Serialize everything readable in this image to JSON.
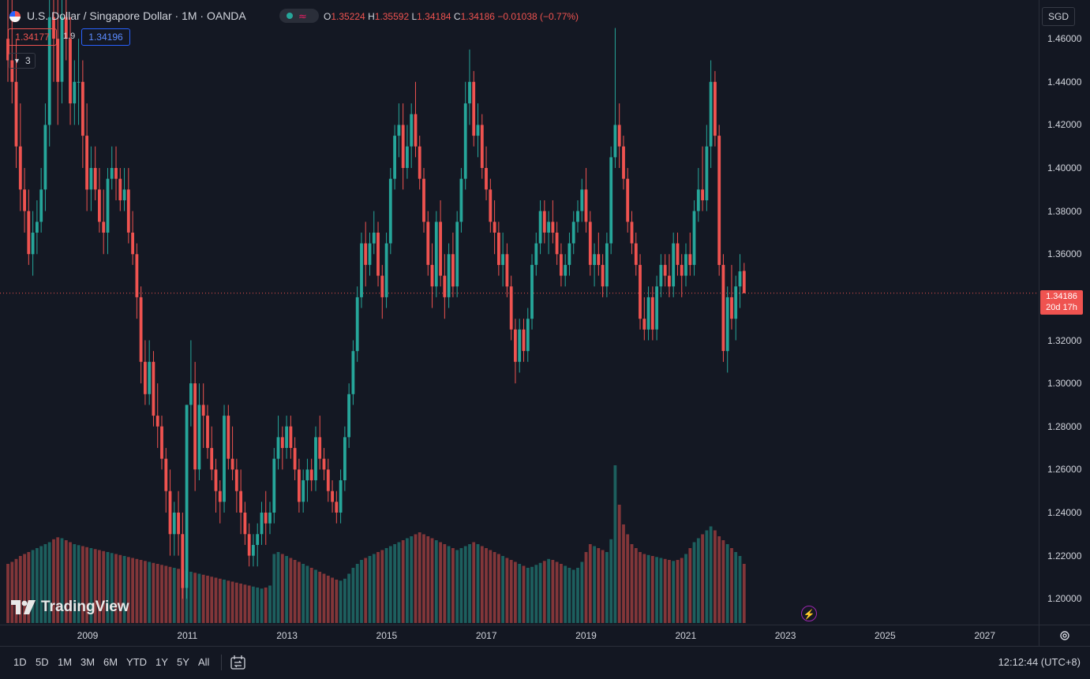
{
  "header": {
    "symbol_title": "U.S. Dollar / Singapore Dollar · 1M · OANDA",
    "status_icons": [
      "dot-icon",
      "waves-icon"
    ],
    "ohlc": {
      "o_label": "O",
      "o_value": "1.35224",
      "h_label": "H",
      "h_value": "1.35592",
      "l_label": "L",
      "l_value": "1.34184",
      "c_label": "C",
      "c_value": "1.34186",
      "change": "−0.01038 (−0.77%)"
    },
    "bid": "1.34177",
    "spread": "1.9",
    "ask": "1.34196",
    "indicators_count": "3"
  },
  "price_axis": {
    "currency": "SGD",
    "ticks": [
      "1.46000",
      "1.44000",
      "1.42000",
      "1.40000",
      "1.38000",
      "1.36000",
      "1.34000",
      "1.32000",
      "1.30000",
      "1.28000",
      "1.26000",
      "1.24000",
      "1.22000",
      "1.20000"
    ],
    "tick_values": [
      1.46,
      1.44,
      1.42,
      1.4,
      1.38,
      1.36,
      1.34,
      1.32,
      1.3,
      1.28,
      1.26,
      1.24,
      1.22,
      1.2
    ],
    "last_price": "1.34186",
    "countdown": "20d 17h"
  },
  "time_axis": {
    "years": [
      "2009",
      "2011",
      "2013",
      "2015",
      "2017",
      "2019",
      "2021",
      "2023",
      "2025",
      "2027"
    ]
  },
  "bottom_toolbar": {
    "ranges": [
      "1D",
      "5D",
      "1M",
      "3M",
      "6M",
      "YTD",
      "1Y",
      "5Y",
      "All"
    ],
    "clock": "12:12:44 (UTC+8)"
  },
  "watermark": "TradingView",
  "colors": {
    "up": "#26a69a",
    "down": "#ef5350",
    "background": "#131722",
    "last_price_line": "#ef5350"
  },
  "chart_data": {
    "type": "candlestick",
    "ylim": [
      1.188,
      1.478
    ],
    "last_price": 1.34186,
    "candle_start": "2008-01",
    "candles": [
      [
        1.46,
        1.49,
        1.44,
        1.45,
        600
      ],
      [
        1.45,
        1.48,
        1.43,
        1.44,
        620
      ],
      [
        1.44,
        1.46,
        1.4,
        1.41,
        650
      ],
      [
        1.41,
        1.43,
        1.38,
        1.39,
        680
      ],
      [
        1.39,
        1.4,
        1.37,
        1.38,
        700
      ],
      [
        1.38,
        1.39,
        1.355,
        1.36,
        720
      ],
      [
        1.36,
        1.38,
        1.35,
        1.37,
        740
      ],
      [
        1.37,
        1.385,
        1.36,
        1.375,
        760
      ],
      [
        1.375,
        1.4,
        1.37,
        1.39,
        780
      ],
      [
        1.39,
        1.43,
        1.38,
        1.42,
        800
      ],
      [
        1.42,
        1.49,
        1.41,
        1.47,
        820
      ],
      [
        1.47,
        1.53,
        1.44,
        1.46,
        850
      ],
      [
        1.46,
        1.49,
        1.42,
        1.44,
        870
      ],
      [
        1.44,
        1.48,
        1.43,
        1.47,
        860
      ],
      [
        1.47,
        1.5,
        1.45,
        1.46,
        840
      ],
      [
        1.46,
        1.47,
        1.42,
        1.43,
        820
      ],
      [
        1.43,
        1.45,
        1.42,
        1.44,
        800
      ],
      [
        1.44,
        1.46,
        1.42,
        1.44,
        790
      ],
      [
        1.44,
        1.45,
        1.4,
        1.415,
        780
      ],
      [
        1.415,
        1.43,
        1.38,
        1.39,
        770
      ],
      [
        1.39,
        1.41,
        1.38,
        1.4,
        760
      ],
      [
        1.4,
        1.41,
        1.385,
        1.39,
        750
      ],
      [
        1.39,
        1.4,
        1.37,
        1.375,
        740
      ],
      [
        1.375,
        1.39,
        1.36,
        1.37,
        730
      ],
      [
        1.37,
        1.4,
        1.36,
        1.395,
        720
      ],
      [
        1.395,
        1.41,
        1.39,
        1.4,
        710
      ],
      [
        1.4,
        1.41,
        1.385,
        1.395,
        700
      ],
      [
        1.395,
        1.4,
        1.38,
        1.385,
        690
      ],
      [
        1.385,
        1.4,
        1.38,
        1.39,
        680
      ],
      [
        1.39,
        1.4,
        1.365,
        1.37,
        670
      ],
      [
        1.37,
        1.38,
        1.355,
        1.36,
        660
      ],
      [
        1.36,
        1.365,
        1.33,
        1.34,
        650
      ],
      [
        1.34,
        1.345,
        1.3,
        1.31,
        640
      ],
      [
        1.31,
        1.32,
        1.29,
        1.295,
        630
      ],
      [
        1.295,
        1.32,
        1.29,
        1.31,
        620
      ],
      [
        1.31,
        1.315,
        1.28,
        1.285,
        610
      ],
      [
        1.285,
        1.3,
        1.27,
        1.28,
        600
      ],
      [
        1.28,
        1.285,
        1.26,
        1.265,
        590
      ],
      [
        1.265,
        1.27,
        1.24,
        1.25,
        580
      ],
      [
        1.25,
        1.26,
        1.22,
        1.23,
        570
      ],
      [
        1.23,
        1.245,
        1.22,
        1.24,
        560
      ],
      [
        1.24,
        1.25,
        1.22,
        1.23,
        550
      ],
      [
        1.23,
        1.24,
        1.2,
        1.205,
        540
      ],
      [
        1.205,
        1.29,
        1.2,
        1.29,
        530
      ],
      [
        1.29,
        1.32,
        1.28,
        1.3,
        520
      ],
      [
        1.3,
        1.31,
        1.25,
        1.26,
        510
      ],
      [
        1.26,
        1.3,
        1.255,
        1.29,
        500
      ],
      [
        1.29,
        1.3,
        1.27,
        1.285,
        490
      ],
      [
        1.285,
        1.29,
        1.265,
        1.27,
        480
      ],
      [
        1.27,
        1.28,
        1.255,
        1.26,
        470
      ],
      [
        1.26,
        1.265,
        1.24,
        1.25,
        460
      ],
      [
        1.25,
        1.255,
        1.235,
        1.245,
        450
      ],
      [
        1.245,
        1.29,
        1.24,
        1.285,
        440
      ],
      [
        1.285,
        1.29,
        1.26,
        1.265,
        430
      ],
      [
        1.265,
        1.28,
        1.255,
        1.26,
        420
      ],
      [
        1.26,
        1.265,
        1.24,
        1.25,
        410
      ],
      [
        1.25,
        1.26,
        1.23,
        1.24,
        400
      ],
      [
        1.24,
        1.245,
        1.225,
        1.23,
        390
      ],
      [
        1.23,
        1.235,
        1.215,
        1.22,
        380
      ],
      [
        1.22,
        1.23,
        1.215,
        1.225,
        370
      ],
      [
        1.225,
        1.235,
        1.215,
        1.23,
        360
      ],
      [
        1.23,
        1.245,
        1.225,
        1.24,
        350
      ],
      [
        1.24,
        1.25,
        1.225,
        1.235,
        360
      ],
      [
        1.235,
        1.245,
        1.23,
        1.24,
        380
      ],
      [
        1.24,
        1.27,
        1.235,
        1.265,
        700
      ],
      [
        1.265,
        1.285,
        1.26,
        1.275,
        720
      ],
      [
        1.275,
        1.28,
        1.26,
        1.27,
        700
      ],
      [
        1.27,
        1.285,
        1.265,
        1.28,
        680
      ],
      [
        1.28,
        1.285,
        1.265,
        1.27,
        660
      ],
      [
        1.27,
        1.275,
        1.255,
        1.26,
        640
      ],
      [
        1.26,
        1.265,
        1.24,
        1.245,
        620
      ],
      [
        1.245,
        1.26,
        1.24,
        1.255,
        600
      ],
      [
        1.255,
        1.265,
        1.245,
        1.26,
        580
      ],
      [
        1.26,
        1.265,
        1.25,
        1.255,
        560
      ],
      [
        1.255,
        1.28,
        1.25,
        1.275,
        540
      ],
      [
        1.275,
        1.285,
        1.26,
        1.265,
        520
      ],
      [
        1.265,
        1.27,
        1.255,
        1.26,
        500
      ],
      [
        1.26,
        1.265,
        1.245,
        1.25,
        480
      ],
      [
        1.25,
        1.255,
        1.24,
        1.245,
        460
      ],
      [
        1.245,
        1.25,
        1.235,
        1.24,
        440
      ],
      [
        1.24,
        1.26,
        1.235,
        1.255,
        430
      ],
      [
        1.255,
        1.28,
        1.25,
        1.275,
        450
      ],
      [
        1.275,
        1.3,
        1.27,
        1.295,
        500
      ],
      [
        1.295,
        1.32,
        1.29,
        1.315,
        560
      ],
      [
        1.315,
        1.345,
        1.31,
        1.34,
        600
      ],
      [
        1.34,
        1.37,
        1.335,
        1.365,
        640
      ],
      [
        1.365,
        1.375,
        1.345,
        1.355,
        660
      ],
      [
        1.355,
        1.37,
        1.35,
        1.365,
        680
      ],
      [
        1.365,
        1.38,
        1.36,
        1.37,
        700
      ],
      [
        1.37,
        1.375,
        1.345,
        1.35,
        720
      ],
      [
        1.35,
        1.355,
        1.33,
        1.34,
        740
      ],
      [
        1.34,
        1.37,
        1.335,
        1.365,
        760
      ],
      [
        1.365,
        1.4,
        1.36,
        1.395,
        780
      ],
      [
        1.395,
        1.42,
        1.39,
        1.415,
        800
      ],
      [
        1.415,
        1.43,
        1.405,
        1.42,
        820
      ],
      [
        1.42,
        1.43,
        1.39,
        1.4,
        840
      ],
      [
        1.4,
        1.42,
        1.395,
        1.41,
        860
      ],
      [
        1.41,
        1.43,
        1.4,
        1.425,
        880
      ],
      [
        1.425,
        1.44,
        1.405,
        1.41,
        900
      ],
      [
        1.41,
        1.415,
        1.39,
        1.395,
        920
      ],
      [
        1.395,
        1.4,
        1.37,
        1.375,
        900
      ],
      [
        1.375,
        1.38,
        1.35,
        1.355,
        880
      ],
      [
        1.355,
        1.365,
        1.335,
        1.345,
        860
      ],
      [
        1.345,
        1.38,
        1.34,
        1.375,
        840
      ],
      [
        1.375,
        1.385,
        1.345,
        1.35,
        820
      ],
      [
        1.35,
        1.36,
        1.33,
        1.34,
        800
      ],
      [
        1.34,
        1.365,
        1.335,
        1.36,
        780
      ],
      [
        1.36,
        1.37,
        1.34,
        1.345,
        760
      ],
      [
        1.345,
        1.38,
        1.34,
        1.375,
        740
      ],
      [
        1.375,
        1.4,
        1.37,
        1.395,
        760
      ],
      [
        1.395,
        1.44,
        1.39,
        1.43,
        780
      ],
      [
        1.43,
        1.455,
        1.42,
        1.44,
        800
      ],
      [
        1.44,
        1.445,
        1.41,
        1.415,
        820
      ],
      [
        1.415,
        1.43,
        1.405,
        1.42,
        800
      ],
      [
        1.42,
        1.425,
        1.395,
        1.4,
        780
      ],
      [
        1.4,
        1.41,
        1.385,
        1.39,
        760
      ],
      [
        1.39,
        1.395,
        1.37,
        1.375,
        740
      ],
      [
        1.375,
        1.385,
        1.36,
        1.37,
        720
      ],
      [
        1.37,
        1.375,
        1.35,
        1.355,
        700
      ],
      [
        1.355,
        1.37,
        1.345,
        1.36,
        680
      ],
      [
        1.36,
        1.365,
        1.34,
        1.345,
        660
      ],
      [
        1.345,
        1.35,
        1.32,
        1.325,
        640
      ],
      [
        1.325,
        1.33,
        1.3,
        1.31,
        620
      ],
      [
        1.31,
        1.33,
        1.305,
        1.325,
        600
      ],
      [
        1.325,
        1.33,
        1.31,
        1.315,
        580
      ],
      [
        1.315,
        1.335,
        1.31,
        1.33,
        560
      ],
      [
        1.33,
        1.36,
        1.325,
        1.355,
        570
      ],
      [
        1.355,
        1.37,
        1.35,
        1.365,
        590
      ],
      [
        1.365,
        1.385,
        1.36,
        1.38,
        610
      ],
      [
        1.38,
        1.385,
        1.365,
        1.37,
        630
      ],
      [
        1.37,
        1.38,
        1.36,
        1.375,
        650
      ],
      [
        1.375,
        1.385,
        1.365,
        1.37,
        640
      ],
      [
        1.37,
        1.375,
        1.355,
        1.36,
        620
      ],
      [
        1.36,
        1.365,
        1.345,
        1.35,
        600
      ],
      [
        1.35,
        1.36,
        1.345,
        1.355,
        580
      ],
      [
        1.355,
        1.37,
        1.35,
        1.365,
        560
      ],
      [
        1.365,
        1.38,
        1.36,
        1.375,
        540
      ],
      [
        1.375,
        1.385,
        1.37,
        1.38,
        560
      ],
      [
        1.38,
        1.395,
        1.375,
        1.39,
        620
      ],
      [
        1.39,
        1.4,
        1.37,
        1.375,
        720
      ],
      [
        1.375,
        1.38,
        1.35,
        1.355,
        800
      ],
      [
        1.355,
        1.365,
        1.345,
        1.36,
        780
      ],
      [
        1.36,
        1.37,
        1.35,
        1.355,
        760
      ],
      [
        1.355,
        1.36,
        1.34,
        1.345,
        740
      ],
      [
        1.345,
        1.37,
        1.34,
        1.365,
        720
      ],
      [
        1.365,
        1.41,
        1.36,
        1.405,
        850
      ],
      [
        1.405,
        1.465,
        1.4,
        1.42,
        1600
      ],
      [
        1.42,
        1.43,
        1.4,
        1.41,
        1200
      ],
      [
        1.41,
        1.415,
        1.39,
        1.395,
        1000
      ],
      [
        1.395,
        1.4,
        1.37,
        1.375,
        900
      ],
      [
        1.375,
        1.38,
        1.36,
        1.365,
        800
      ],
      [
        1.365,
        1.37,
        1.35,
        1.355,
        760
      ],
      [
        1.355,
        1.36,
        1.325,
        1.33,
        720
      ],
      [
        1.33,
        1.34,
        1.32,
        1.325,
        700
      ],
      [
        1.325,
        1.345,
        1.32,
        1.34,
        690
      ],
      [
        1.34,
        1.345,
        1.32,
        1.325,
        680
      ],
      [
        1.325,
        1.35,
        1.32,
        1.345,
        670
      ],
      [
        1.345,
        1.36,
        1.34,
        1.355,
        660
      ],
      [
        1.355,
        1.36,
        1.345,
        1.35,
        650
      ],
      [
        1.35,
        1.36,
        1.34,
        1.345,
        640
      ],
      [
        1.345,
        1.37,
        1.34,
        1.365,
        630
      ],
      [
        1.365,
        1.37,
        1.35,
        1.355,
        640
      ],
      [
        1.355,
        1.36,
        1.34,
        1.35,
        660
      ],
      [
        1.35,
        1.365,
        1.345,
        1.36,
        700
      ],
      [
        1.36,
        1.37,
        1.35,
        1.355,
        760
      ],
      [
        1.355,
        1.385,
        1.35,
        1.38,
        820
      ],
      [
        1.38,
        1.4,
        1.375,
        1.39,
        860
      ],
      [
        1.39,
        1.41,
        1.38,
        1.385,
        900
      ],
      [
        1.385,
        1.42,
        1.38,
        1.41,
        940
      ],
      [
        1.41,
        1.45,
        1.4,
        1.44,
        980
      ],
      [
        1.44,
        1.445,
        1.41,
        1.415,
        940
      ],
      [
        1.415,
        1.42,
        1.35,
        1.355,
        880
      ],
      [
        1.355,
        1.36,
        1.31,
        1.315,
        840
      ],
      [
        1.315,
        1.345,
        1.305,
        1.34,
        800
      ],
      [
        1.34,
        1.355,
        1.325,
        1.33,
        760
      ],
      [
        1.33,
        1.35,
        1.32,
        1.345,
        720
      ],
      [
        1.345,
        1.36,
        1.335,
        1.352,
        680
      ],
      [
        1.35224,
        1.35592,
        1.34184,
        1.34186,
        600
      ]
    ]
  }
}
